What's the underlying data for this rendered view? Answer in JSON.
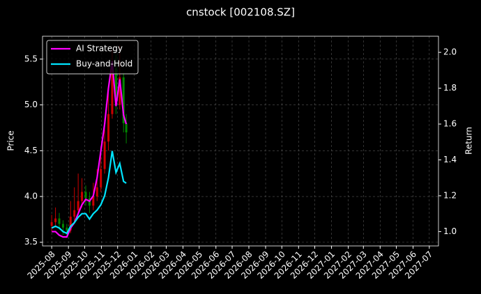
{
  "chart_data": {
    "type": "candlestick",
    "title": "cnstock [002108.SZ]",
    "y_label": "Price",
    "y2_label": "Return",
    "x": [
      "2025-08-01",
      "2025-08-08",
      "2025-08-15",
      "2025-08-22",
      "2025-08-29",
      "2025-09-05",
      "2025-09-12",
      "2025-09-19",
      "2025-09-26",
      "2025-10-03",
      "2025-10-10",
      "2025-10-17",
      "2025-10-24",
      "2025-10-31",
      "2025-11-07",
      "2025-11-14",
      "2025-11-21",
      "2025-11-28",
      "2025-12-05",
      "2025-12-12",
      "2025-12-17"
    ],
    "open": [
      3.68,
      3.72,
      3.76,
      3.7,
      3.66,
      3.63,
      3.78,
      3.85,
      3.95,
      4.05,
      3.98,
      3.9,
      4.0,
      4.1,
      4.3,
      4.6,
      4.9,
      5.4,
      5.0,
      5.3,
      4.8
    ],
    "close": [
      3.72,
      3.76,
      3.7,
      3.66,
      3.63,
      3.78,
      3.85,
      3.95,
      4.05,
      3.98,
      3.9,
      4.0,
      4.1,
      4.3,
      4.6,
      4.9,
      5.4,
      5.0,
      5.3,
      4.8,
      4.7
    ],
    "high": [
      3.8,
      3.88,
      3.82,
      3.74,
      3.7,
      3.95,
      4.1,
      4.25,
      4.2,
      4.12,
      4.05,
      4.15,
      4.3,
      4.55,
      4.85,
      5.2,
      5.6,
      5.55,
      5.65,
      5.35,
      4.9
    ],
    "low": [
      3.62,
      3.66,
      3.64,
      3.58,
      3.55,
      3.6,
      3.72,
      3.8,
      3.88,
      3.9,
      3.82,
      3.85,
      3.95,
      4.05,
      4.25,
      4.5,
      4.85,
      4.9,
      4.95,
      4.7,
      4.58
    ],
    "up_color": "#cc0000",
    "down_color": "#008800",
    "series": [
      {
        "name": "AI Strategy",
        "color": "#ff00ff",
        "axis": "y2",
        "values": [
          1.0,
          1.0,
          0.98,
          0.97,
          0.97,
          1.02,
          1.05,
          1.1,
          1.15,
          1.18,
          1.17,
          1.2,
          1.3,
          1.45,
          1.6,
          1.8,
          1.95,
          1.7,
          1.85,
          1.65,
          1.6
        ]
      },
      {
        "name": "Buy-and-Hold",
        "color": "#00e5ff",
        "axis": "y2",
        "values": [
          1.02,
          1.03,
          1.02,
          1.0,
          0.99,
          1.03,
          1.05,
          1.08,
          1.1,
          1.1,
          1.07,
          1.1,
          1.12,
          1.15,
          1.2,
          1.3,
          1.45,
          1.33,
          1.38,
          1.28,
          1.27
        ]
      }
    ],
    "xlim": [
      "2025-07-15",
      "2027-07-18"
    ],
    "xticks": [
      "2025-08",
      "2025-09",
      "2025-10",
      "2025-11",
      "2025-12",
      "2026-01",
      "2026-02",
      "2026-03",
      "2026-04",
      "2026-05",
      "2026-06",
      "2026-07",
      "2026-08",
      "2026-09",
      "2026-10",
      "2026-11",
      "2026-12",
      "2027-01",
      "2027-02",
      "2027-03",
      "2027-04",
      "2027-05",
      "2027-06",
      "2027-07"
    ],
    "ylim": [
      3.46,
      5.75
    ],
    "yticks": [
      3.5,
      {
        "value": 4,
        "label": "4.0"
      },
      4.5,
      {
        "value": 5,
        "label": "5.0"
      },
      5.5
    ],
    "y2lim": [
      0.92,
      2.09
    ],
    "y2ticks": [
      {
        "value": 1,
        "label": "1.0"
      },
      1.2,
      1.4,
      1.6,
      1.8,
      {
        "value": 2,
        "label": "2.0"
      }
    ],
    "grid": true,
    "legend": "upper-left"
  }
}
